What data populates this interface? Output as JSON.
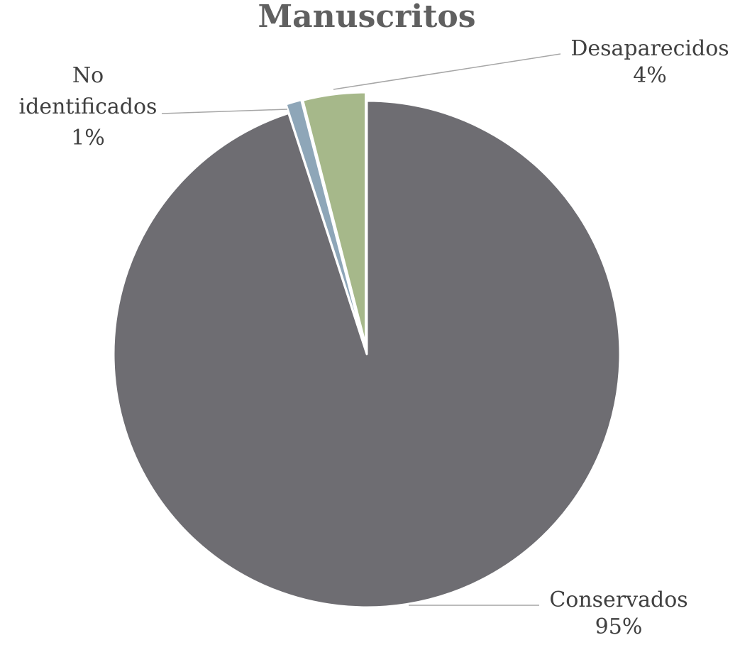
{
  "chart_data": {
    "type": "pie",
    "title": "Manuscritos",
    "slices": [
      {
        "label": "Conservados",
        "value": 95,
        "value_label": "95%",
        "color": "#6e6d72"
      },
      {
        "label": "No identificados",
        "label_lines": [
          "No",
          "identificados"
        ],
        "value": 1,
        "value_label": "1%",
        "color": "#8ea6b8"
      },
      {
        "label": "Desaparecidos",
        "value": 4,
        "value_label": "4%",
        "color": "#a6b88a"
      }
    ],
    "start_angle": "12 o'clock",
    "direction": "clockwise",
    "exploded_slices": [
      "No identificados",
      "Desaparecidos"
    ],
    "data_labels": "outside with leader lines",
    "legend": "none"
  }
}
